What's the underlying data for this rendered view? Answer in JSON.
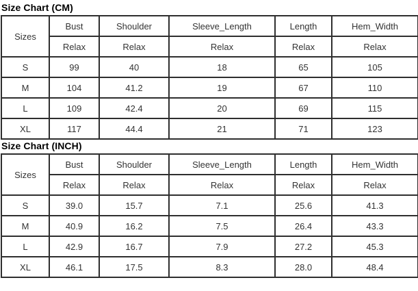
{
  "colors": {
    "background": "#ffffff",
    "border": "#2e2e2e",
    "cell_text": "#333333",
    "title_text": "#000000"
  },
  "chart_data": [
    {
      "type": "table",
      "title": "Size Chart (CM)",
      "corner_header": "Sizes",
      "columns": [
        "Bust",
        "Shoulder",
        "Sleeve_Length",
        "Length",
        "Hem_Width"
      ],
      "fit_row": [
        "Relax",
        "Relax",
        "Relax",
        "Relax",
        "Relax"
      ],
      "rows": [
        {
          "size": "S",
          "values": [
            "99",
            "40",
            "18",
            "65",
            "105"
          ]
        },
        {
          "size": "M",
          "values": [
            "104",
            "41.2",
            "19",
            "67",
            "110"
          ]
        },
        {
          "size": "L",
          "values": [
            "109",
            "42.4",
            "20",
            "69",
            "115"
          ]
        },
        {
          "size": "XL",
          "values": [
            "117",
            "44.4",
            "21",
            "71",
            "123"
          ]
        }
      ]
    },
    {
      "type": "table",
      "title": "Size Chart (INCH)",
      "corner_header": "Sizes",
      "columns": [
        "Bust",
        "Shoulder",
        "Sleeve_Length",
        "Length",
        "Hem_Width"
      ],
      "fit_row": [
        "Relax",
        "Relax",
        "Relax",
        "Relax",
        "Relax"
      ],
      "rows": [
        {
          "size": "S",
          "values": [
            "39.0",
            "15.7",
            "7.1",
            "25.6",
            "41.3"
          ]
        },
        {
          "size": "M",
          "values": [
            "40.9",
            "16.2",
            "7.5",
            "26.4",
            "43.3"
          ]
        },
        {
          "size": "L",
          "values": [
            "42.9",
            "16.7",
            "7.9",
            "27.2",
            "45.3"
          ]
        },
        {
          "size": "XL",
          "values": [
            "46.1",
            "17.5",
            "8.3",
            "28.0",
            "48.4"
          ]
        }
      ]
    }
  ]
}
